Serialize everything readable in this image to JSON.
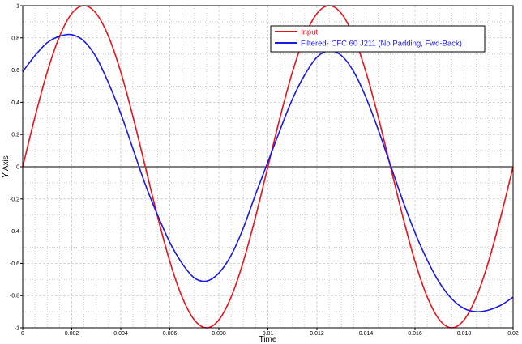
{
  "chart_data": {
    "type": "line",
    "xlabel": "Time",
    "ylabel": "Y Axis",
    "xlim": [
      0,
      0.02
    ],
    "ylim": [
      -1,
      1
    ],
    "x_ticks": [
      "0",
      "0.002",
      "0.004",
      "0.006",
      "0.008",
      "0.01",
      "0.012",
      "0.014",
      "0.016",
      "0.018",
      "0.02"
    ],
    "y_ticks": [
      "-1",
      "-0.8",
      "-0.6",
      "-0.4",
      "-0.2",
      "0",
      "0.2",
      "0.4",
      "0.6",
      "0.8",
      "1"
    ],
    "grid": true,
    "legend_position": "top-right",
    "series": [
      {
        "name": "Input",
        "color": "#e8141c",
        "x": [
          0,
          0.0005,
          0.001,
          0.0015,
          0.002,
          0.0025,
          0.003,
          0.0035,
          0.004,
          0.0045,
          0.005,
          0.0055,
          0.006,
          0.0065,
          0.007,
          0.0075,
          0.008,
          0.0085,
          0.009,
          0.0095,
          0.01,
          0.0105,
          0.011,
          0.0115,
          0.012,
          0.0125,
          0.013,
          0.0135,
          0.014,
          0.0145,
          0.015,
          0.0155,
          0.016,
          0.0165,
          0.017,
          0.0175,
          0.018,
          0.0185,
          0.019,
          0.0195,
          0.02
        ],
        "y": [
          0,
          0.309,
          0.588,
          0.809,
          0.951,
          1.0,
          0.951,
          0.809,
          0.588,
          0.309,
          0,
          -0.309,
          -0.588,
          -0.809,
          -0.951,
          -1.0,
          -0.951,
          -0.809,
          -0.588,
          -0.309,
          0,
          0.309,
          0.588,
          0.809,
          0.951,
          1.0,
          0.951,
          0.809,
          0.588,
          0.309,
          0,
          -0.309,
          -0.588,
          -0.809,
          -0.951,
          -1.0,
          -0.951,
          -0.809,
          -0.588,
          -0.309,
          0
        ]
      },
      {
        "name": "Filtered- CFC 60 J211 (No Padding, Fwd-Back)",
        "color": "#1a1ae6",
        "x": [
          0,
          0.0005,
          0.001,
          0.0015,
          0.002,
          0.0025,
          0.003,
          0.0035,
          0.004,
          0.0045,
          0.005,
          0.0055,
          0.006,
          0.0065,
          0.007,
          0.0075,
          0.008,
          0.0085,
          0.009,
          0.0095,
          0.01,
          0.0105,
          0.011,
          0.0115,
          0.012,
          0.0125,
          0.013,
          0.0135,
          0.014,
          0.0145,
          0.015,
          0.0155,
          0.016,
          0.0165,
          0.017,
          0.0175,
          0.018,
          0.0185,
          0.019,
          0.0195,
          0.02
        ],
        "y": [
          0.59,
          0.69,
          0.77,
          0.81,
          0.82,
          0.78,
          0.68,
          0.52,
          0.33,
          0.11,
          -0.11,
          -0.3,
          -0.47,
          -0.6,
          -0.69,
          -0.71,
          -0.66,
          -0.55,
          -0.38,
          -0.17,
          0.03,
          0.23,
          0.42,
          0.57,
          0.68,
          0.72,
          0.69,
          0.59,
          0.43,
          0.23,
          0.01,
          -0.21,
          -0.41,
          -0.58,
          -0.72,
          -0.82,
          -0.88,
          -0.9,
          -0.89,
          -0.86,
          -0.81
        ]
      }
    ]
  },
  "colors": {
    "plot_background": "#ffffff",
    "grid": "#d3d3d3",
    "zero_line": "#000000",
    "frame": "#000000"
  }
}
